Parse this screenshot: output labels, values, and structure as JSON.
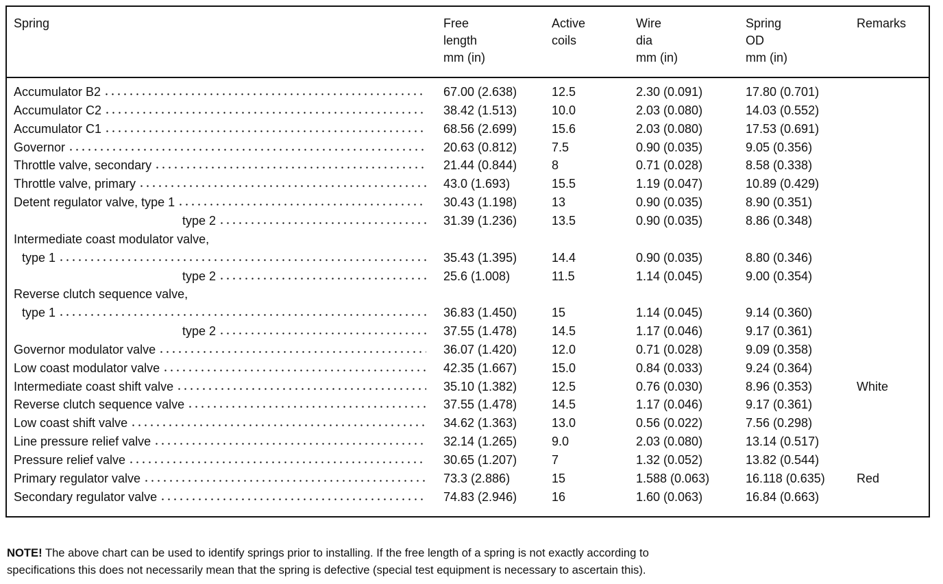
{
  "table": {
    "headers": [
      [
        "Spring"
      ],
      [
        "Free",
        "length",
        "mm (in)"
      ],
      [
        "Active",
        "coils"
      ],
      [
        "Wire",
        "dia",
        "mm (in)"
      ],
      [
        "Spring",
        "OD",
        "mm (in)"
      ],
      [
        "Remarks"
      ]
    ],
    "rows": [
      [
        "Accumulator B2",
        "67.00 (2.638)",
        "12.5",
        "2.30 (0.091)",
        "17.80 (0.701)"
      ],
      [
        "Accumulator C2",
        "38.42 (1.513)",
        "10.0",
        "2.03 (0.080)",
        "14.03 (0.552)"
      ],
      [
        "Accumulator C1",
        "68.56 (2.699)",
        "15.6",
        "2.03 (0.080)",
        "17.53 (0.691)"
      ],
      [
        "Governor",
        "20.63 (0.812)",
        "7.5",
        "0.90 (0.035)",
        "9.05 (0.356)"
      ],
      [
        "Throttle valve, secondary",
        "21.44 (0.844)",
        "8",
        "0.71 (0.028)",
        "8.58 (0.338)"
      ],
      [
        "Throttle valve, primary",
        "43.0 (1.693)",
        "15.5",
        "1.19 (0.047)",
        "10.89 (0.429)"
      ],
      [
        "Detent regulator valve, type 1",
        "30.43 (1.198)",
        "13",
        "0.90 (0.035)",
        "8.90 (0.351)"
      ],
      [
        "type 2",
        "31.39 (1.236)",
        "13.5",
        "0.90 (0.035)",
        "8.86 (0.348)"
      ],
      [
        "Intermediate coast modulator valve,"
      ],
      [
        "type 1",
        "35.43 (1.395)",
        "14.4",
        "0.90 (0.035)",
        "8.80 (0.346)"
      ],
      [
        "type 2",
        "25.6 (1.008)",
        "11.5",
        "1.14 (0.045)",
        "9.00 (0.354)"
      ],
      [
        "Reverse clutch sequence valve,"
      ],
      [
        "type 1",
        "36.83 (1.450)",
        "15",
        "1.14 (0.045)",
        "9.14 (0.360)"
      ],
      [
        "type 2",
        "37.55 (1.478)",
        "14.5",
        "1.17 (0.046)",
        "9.17 (0.361)"
      ],
      [
        "Governor modulator valve",
        "36.07 (1.420)",
        "12.0",
        "0.71 (0.028)",
        "9.09 (0.358)"
      ],
      [
        "Low coast modulator valve",
        "42.35 (1.667)",
        "15.0",
        "0.84 (0.033)",
        "9.24 (0.364)"
      ],
      [
        "Intermediate coast shift valve",
        "35.10 (1.382)",
        "12.5",
        "0.76 (0.030)",
        "8.96 (0.353)",
        "White"
      ],
      [
        "Reverse clutch sequence valve",
        "37.55 (1.478)",
        "14.5",
        "1.17 (0.046)",
        "9.17 (0.361)"
      ],
      [
        "Low coast shift valve",
        "34.62 (1.363)",
        "13.0",
        "0.56 (0.022)",
        "7.56 (0.298)"
      ],
      [
        "Line pressure relief valve",
        "32.14 (1.265)",
        "9.0",
        "2.03 (0.080)",
        "13.14 (0.517)"
      ],
      [
        "Pressure relief valve",
        "30.65 (1.207)",
        "7",
        "1.32 (0.052)",
        "13.82 (0.544)"
      ],
      [
        "Primary regulator valve",
        "73.3 (2.886)",
        "15",
        "1.588 (0.063)",
        "16.118 (0.635)",
        "Red"
      ],
      [
        "Secondary regulator valve",
        "74.83 (2.946)",
        "16",
        "1.60 (0.063)",
        "16.84 (0.663)"
      ]
    ]
  },
  "note": {
    "label": "NOTE!",
    "lines": [
      "The above chart can be used to identify springs prior to installing. If the free length of a spring is not exactly according to",
      "specifications this does not necessarily mean that the spring is defective (special test equipment is necessary to ascertain this)."
    ]
  }
}
